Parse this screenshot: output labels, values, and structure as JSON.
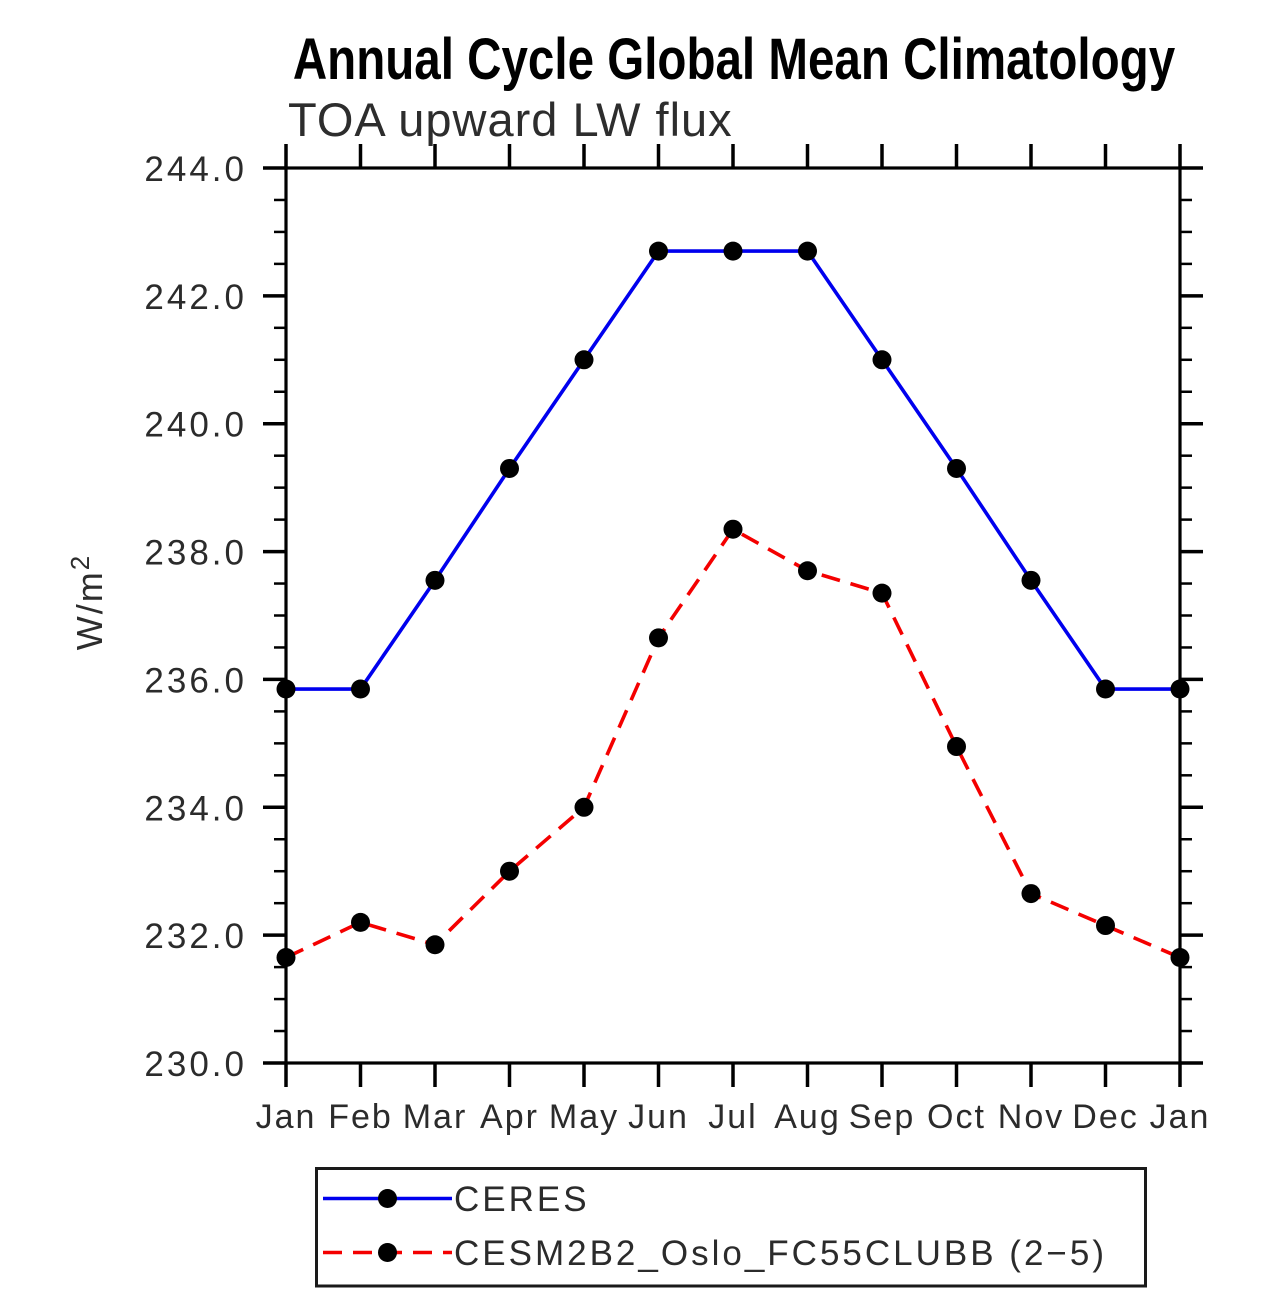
{
  "chart_data": {
    "type": "line",
    "title": "Annual Cycle Global Mean Climatology",
    "subtitle": "TOA upward LW flux",
    "ylabel": "W/m²",
    "ylabel_base": "W/m",
    "ylabel_sup": "2",
    "xlabel": "",
    "categories": [
      "Jan",
      "Feb",
      "Mar",
      "Apr",
      "May",
      "Jun",
      "Jul",
      "Aug",
      "Sep",
      "Oct",
      "Nov",
      "Dec",
      "Jan"
    ],
    "ylim": [
      230.0,
      244.0
    ],
    "ytick_step": 2.0,
    "ytick_minor_step": 0.5,
    "ytick_labels": [
      "230.0",
      "232.0",
      "234.0",
      "236.0",
      "238.0",
      "240.0",
      "242.0",
      "244.0"
    ],
    "grid": false,
    "legend_position": "bottom",
    "axis_color": "#000000",
    "text_color": "#2b2b2b",
    "marker": "filled-circle",
    "marker_color": "#000000",
    "series": [
      {
        "name": "CERES",
        "color": "#0000ee",
        "line_style": "solid",
        "values": [
          235.85,
          235.85,
          237.55,
          239.3,
          241.0,
          242.7,
          242.7,
          242.7,
          241.0,
          239.3,
          237.55,
          235.85,
          235.85
        ]
      },
      {
        "name": "CESM2B2_Oslo_FC55CLUBB (2−5)",
        "color": "#f40000",
        "line_style": "dashed",
        "values": [
          231.65,
          232.2,
          231.85,
          233.0,
          234.0,
          236.65,
          238.35,
          237.7,
          237.35,
          234.95,
          232.65,
          232.15,
          231.65
        ]
      }
    ]
  }
}
